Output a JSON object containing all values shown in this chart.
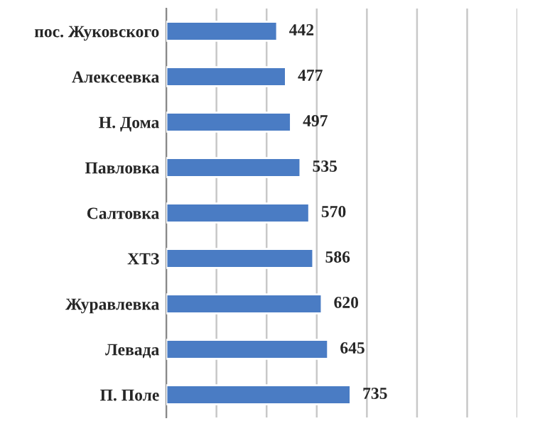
{
  "chart_data": {
    "type": "bar",
    "orientation": "horizontal",
    "categories": [
      "пос. Жуковского",
      "Алексеевка",
      "Н. Дома",
      "Павловка",
      "Салтовка",
      "ХТЗ",
      "Журавлевка",
      "Левада",
      "П. Поле"
    ],
    "values": [
      442,
      477,
      497,
      535,
      570,
      586,
      620,
      645,
      735
    ],
    "color": "#4a7cc4",
    "data_labels": true,
    "grid": "x",
    "xlim": [
      0,
      1400
    ],
    "xticks": [
      {
        "value": 0,
        "label": null
      },
      {
        "value": 200,
        "label": null
      },
      {
        "value": 400,
        "label": null
      },
      {
        "value": 600,
        "label": null
      },
      {
        "value": 800,
        "label": null
      },
      {
        "value": 1000,
        "label": null
      },
      {
        "value": 1200,
        "label": null
      },
      {
        "value": 1400,
        "label": null
      }
    ]
  }
}
